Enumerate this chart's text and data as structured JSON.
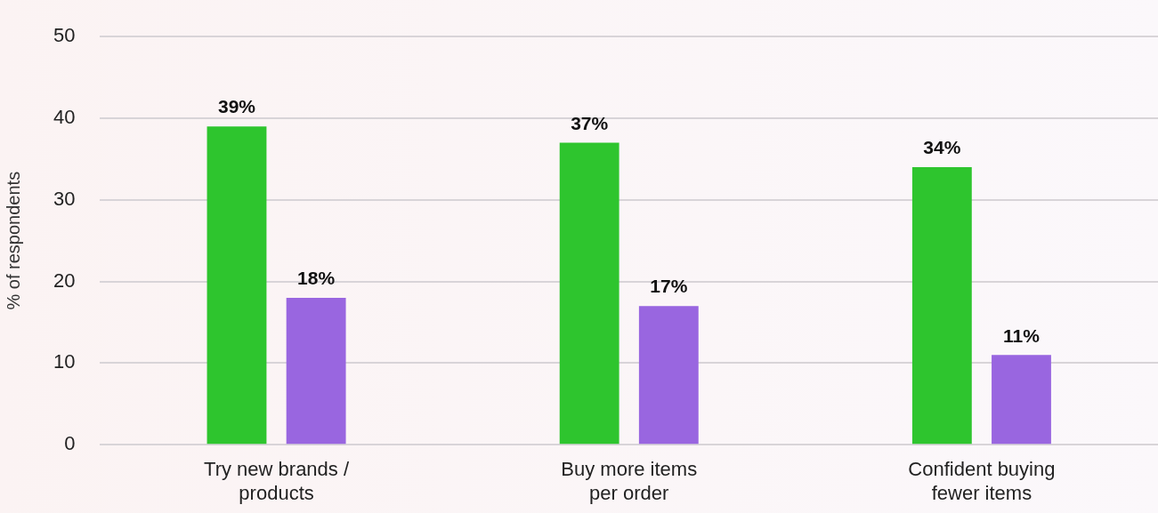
{
  "chart_data": {
    "type": "bar",
    "ylabel": "% of respondents",
    "categories": [
      "Try new brands / products",
      "Buy more items per order",
      "Confident buying fewer items"
    ],
    "series": [
      {
        "color": "#2ec52e",
        "values": [
          39,
          37,
          34
        ],
        "value_labels": [
          "39%",
          "37%",
          "34%"
        ]
      },
      {
        "color": "#9966e0",
        "values": [
          18,
          17,
          11
        ],
        "value_labels": [
          "18%",
          "17%",
          "11%"
        ]
      }
    ],
    "ylim": [
      0,
      50
    ],
    "yticks": [
      0,
      10,
      20,
      30,
      40,
      50
    ],
    "grid": "y",
    "legend": false
  }
}
